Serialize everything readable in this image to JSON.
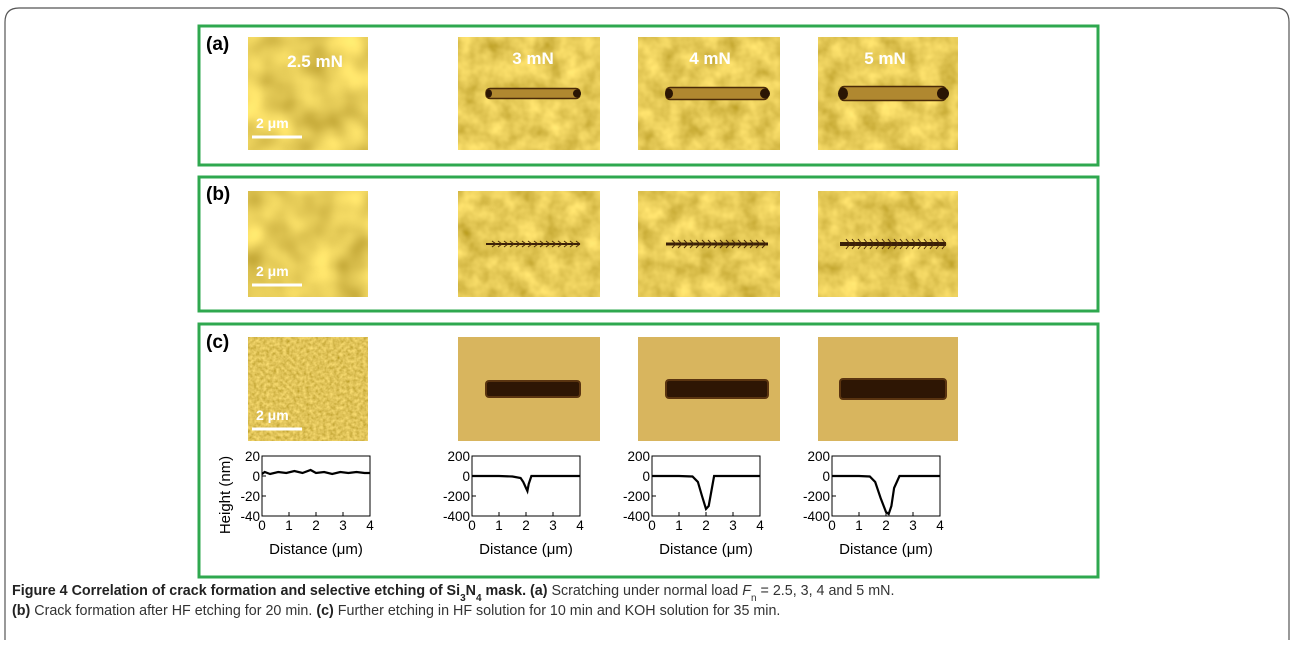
{
  "panels": [
    {
      "label": "(a)",
      "loads": [
        "2.5 mN",
        "3 mN",
        "4 mN",
        "5 mN"
      ],
      "scale_bar": "2 μm"
    },
    {
      "label": "(b)",
      "scale_bar": "2 μm"
    },
    {
      "label": "(c)",
      "scale_bar": "2 μm"
    }
  ],
  "plots": {
    "ylabel": "Height (nm)",
    "xlabel": "Distance (μm)",
    "xlim": [
      0,
      4
    ],
    "xticks": [
      0,
      1,
      2,
      3,
      4
    ],
    "items": [
      {
        "ylim": [
          -40,
          20
        ],
        "yticks": [
          20,
          0,
          -20,
          -40
        ],
        "x": [
          0,
          0.1,
          0.3,
          0.6,
          0.9,
          1.2,
          1.5,
          1.8,
          2.0,
          2.3,
          2.6,
          2.9,
          3.2,
          3.5,
          3.8,
          4
        ],
        "values": [
          2,
          4,
          2,
          4,
          3,
          5,
          3,
          6,
          3,
          4,
          2,
          4,
          3,
          4,
          3,
          3
        ]
      },
      {
        "ylim": [
          -400,
          200
        ],
        "yticks": [
          200,
          0,
          -200,
          -400
        ],
        "x": [
          0,
          0.5,
          1,
          1.5,
          1.8,
          1.9,
          2.0,
          2.05,
          2.1,
          2.2,
          2.5,
          3,
          3.5,
          4
        ],
        "values": [
          0,
          0,
          0,
          -5,
          -20,
          -60,
          -120,
          -150,
          -80,
          0,
          0,
          0,
          0,
          0
        ]
      },
      {
        "ylim": [
          -400,
          200
        ],
        "yticks": [
          200,
          0,
          -200,
          -400
        ],
        "x": [
          0,
          0.5,
          1,
          1.5,
          1.7,
          1.85,
          2.0,
          2.1,
          2.2,
          2.3,
          2.5,
          3,
          3.5,
          4
        ],
        "values": [
          0,
          0,
          0,
          -5,
          -60,
          -200,
          -330,
          -300,
          -150,
          0,
          0,
          0,
          0,
          0
        ]
      },
      {
        "ylim": [
          -400,
          200
        ],
        "yticks": [
          200,
          0,
          -200,
          -400
        ],
        "x": [
          0,
          0.5,
          1,
          1.4,
          1.6,
          1.8,
          2.0,
          2.1,
          2.2,
          2.3,
          2.5,
          3,
          3.5,
          4
        ],
        "values": [
          0,
          0,
          0,
          -5,
          -60,
          -220,
          -360,
          -380,
          -300,
          -120,
          0,
          0,
          0,
          0
        ]
      }
    ]
  },
  "caption": {
    "title": [
      "Figure 4 Correlation of crack formation and selective etching of Si",
      "3",
      "N",
      "4",
      " mask."
    ],
    "line1": [
      "(a)",
      " Scratching under normal load ",
      "F",
      "n",
      " = 2.5, 3, 4 and 5 mN."
    ],
    "line2": [
      "(b)",
      " Crack formation after HF etching for 20 min. ",
      "(c)",
      " Further etching in HF solution for 10 min and KOH solution for 35 min."
    ]
  }
}
